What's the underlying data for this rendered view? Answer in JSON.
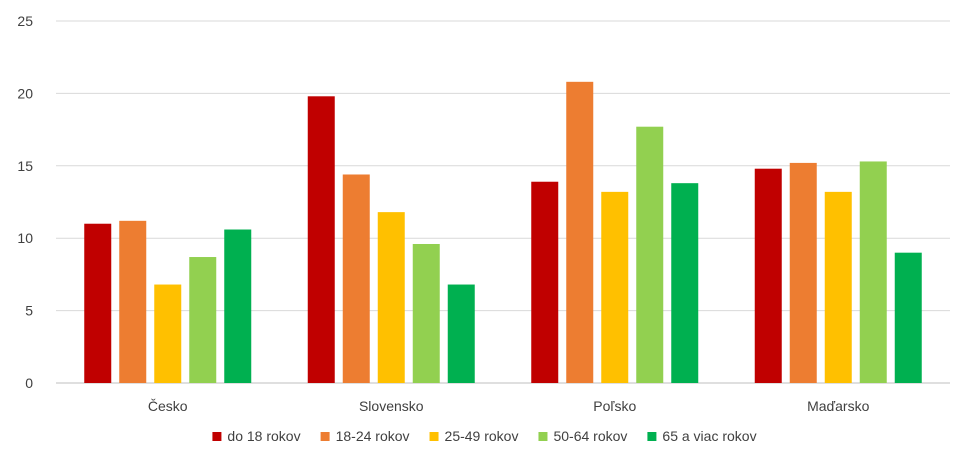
{
  "chart_data": {
    "type": "bar",
    "categories": [
      "Česko",
      "Slovensko",
      "Poľsko",
      "Maďarsko"
    ],
    "series": [
      {
        "name": "do 18 rokov",
        "color": "#C00000",
        "values": [
          11.0,
          19.8,
          13.9,
          14.8
        ]
      },
      {
        "name": "18-24 rokov",
        "color": "#ED7D31",
        "values": [
          11.2,
          14.4,
          20.8,
          15.2
        ]
      },
      {
        "name": "25-49 rokov",
        "color": "#FFC000",
        "values": [
          6.8,
          11.8,
          13.2,
          13.2
        ]
      },
      {
        "name": "50-64 rokov",
        "color": "#92D050",
        "values": [
          8.7,
          9.6,
          17.7,
          15.3
        ]
      },
      {
        "name": "65 a viac rokov",
        "color": "#00B050",
        "values": [
          10.6,
          6.8,
          13.8,
          9.0
        ]
      }
    ],
    "ylim": [
      0,
      25
    ],
    "yticks": [
      0,
      5,
      10,
      15,
      20,
      25
    ],
    "grid": true,
    "legend_position": "bottom",
    "title": "",
    "xlabel": "",
    "ylabel": ""
  }
}
